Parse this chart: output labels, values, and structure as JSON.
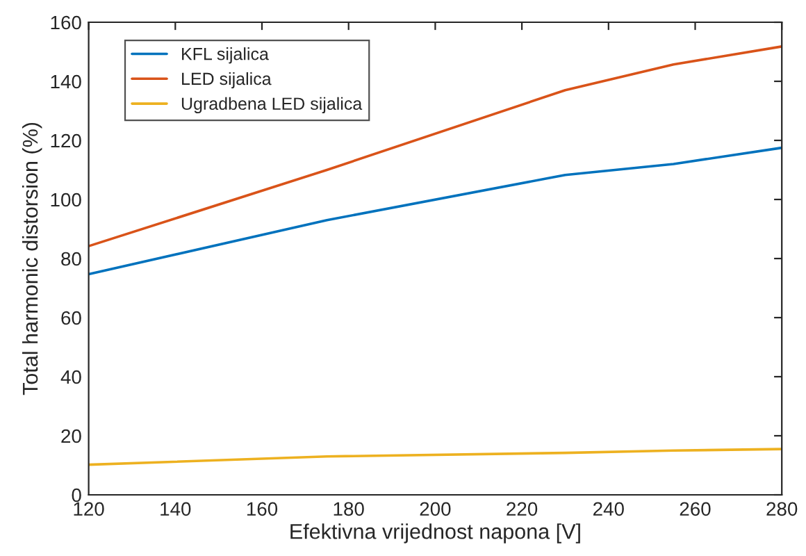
{
  "chart_data": {
    "type": "line",
    "xlabel": "Efektivna vrijednost napona [V]",
    "ylabel": "Total harmonic distorsion (%)",
    "x": [
      120,
      175,
      230,
      255,
      280
    ],
    "series": [
      {
        "name": "KFL sijalica",
        "color": "#0072bd",
        "values": [
          74.7,
          93,
          108.3,
          112,
          117.5
        ]
      },
      {
        "name": "LED sijalica",
        "color": "#d95319",
        "values": [
          84.2,
          110,
          137,
          145.7,
          151.8
        ]
      },
      {
        "name": "Ugradbena LED sijalica",
        "color": "#edb120",
        "values": [
          10.2,
          13,
          14.2,
          15,
          15.5
        ]
      }
    ],
    "xlim": [
      120,
      280
    ],
    "xticks": [
      120,
      140,
      160,
      180,
      200,
      220,
      240,
      260,
      280
    ],
    "ylim": [
      0,
      160
    ],
    "yticks": [
      0,
      20,
      40,
      60,
      80,
      100,
      120,
      140,
      160
    ],
    "grid": false,
    "legend": "top left",
    "marker": "none",
    "line_style": "solid"
  }
}
